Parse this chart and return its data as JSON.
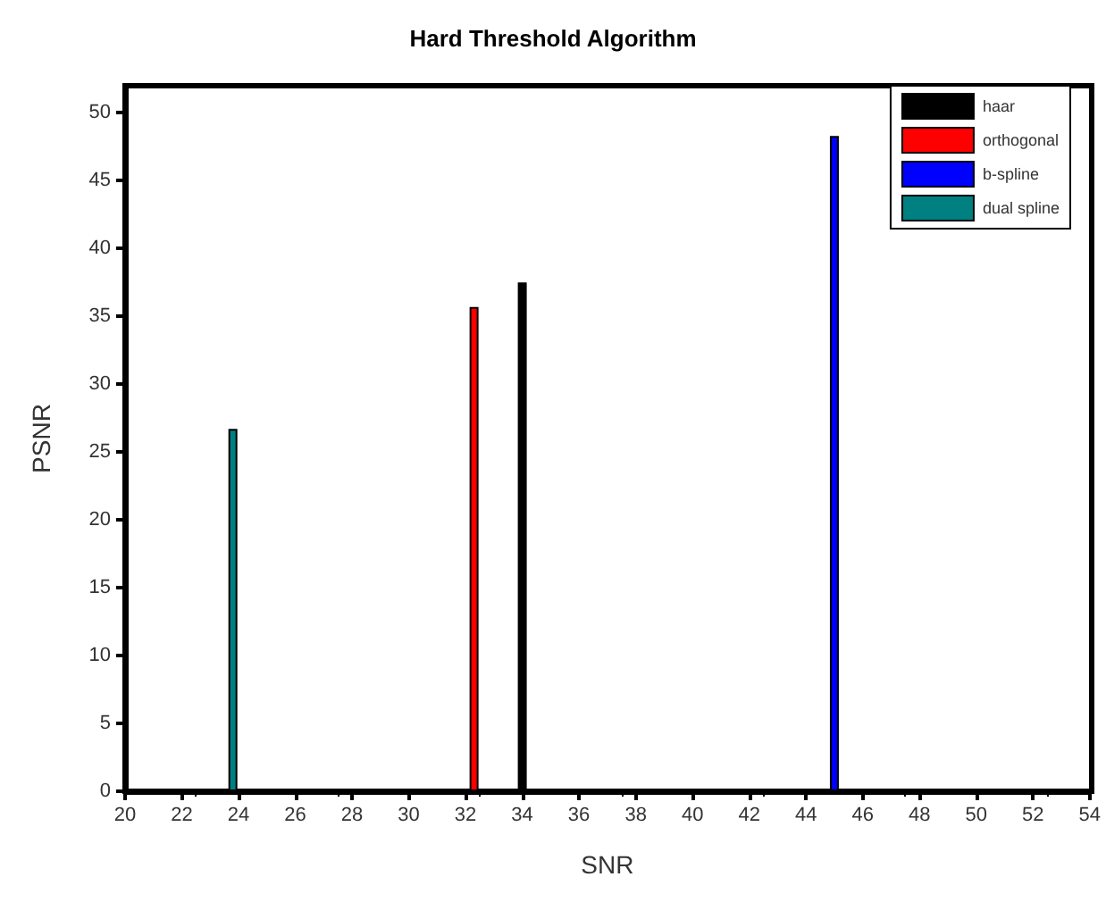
{
  "chart_data": {
    "type": "bar",
    "title": "Hard Threshold Algorithm",
    "xlabel": "SNR",
    "ylabel": "PSNR",
    "series": [
      {
        "name": "haar",
        "color": "#000000",
        "x": [
          34.0
        ],
        "values": [
          37.5
        ]
      },
      {
        "name": "orthogonal",
        "color": "#ff0000",
        "x": [
          32.3
        ],
        "values": [
          35.7
        ]
      },
      {
        "name": "b-spline",
        "color": "#0000ff",
        "x": [
          45.0
        ],
        "values": [
          48.3
        ]
      },
      {
        "name": "dual spline",
        "color": "#008080",
        "x": [
          23.8
        ],
        "values": [
          26.7
        ]
      }
    ],
    "xlim": [
      20,
      54
    ],
    "xticks": [
      20,
      22,
      24,
      26,
      28,
      30,
      32,
      34,
      36,
      38,
      40,
      42,
      44,
      46,
      48,
      50,
      52,
      54
    ],
    "ylim": [
      0,
      52
    ],
    "yticks": [
      0,
      5,
      10,
      15,
      20,
      25,
      30,
      35,
      40,
      45,
      50
    ],
    "grid": false,
    "legend": "top right"
  }
}
